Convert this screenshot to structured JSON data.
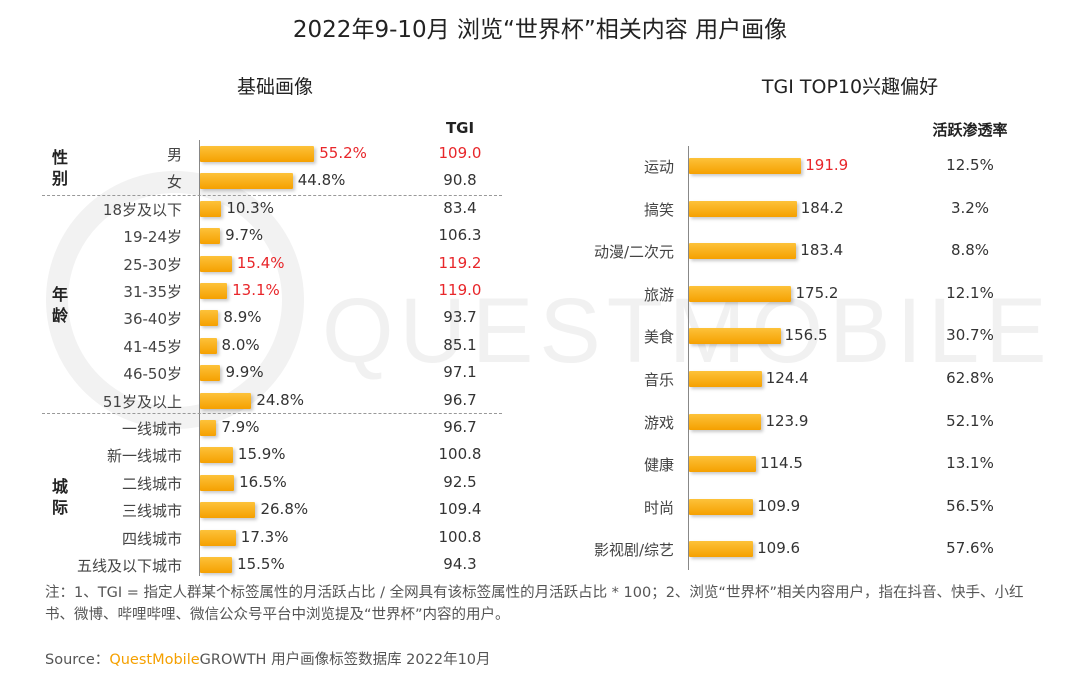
{
  "title": "2022年9-10月 浏览“世界杯”相关内容 用户画像",
  "watermark": "QUESTMOBILE",
  "colors": {
    "bar": "#f7b21c",
    "highlight": "#e8262a"
  },
  "chart_data": [
    {
      "type": "bar",
      "title": "基础画像",
      "value_unit": "%",
      "tgi_header": "TGI",
      "groups": [
        {
          "name": "性别",
          "lines": [
            "性",
            "别"
          ],
          "rows": [
            {
              "label": "男",
              "value": 55.2,
              "display": "55.2%",
              "tgi": "109.0",
              "highlight": true
            },
            {
              "label": "女",
              "value": 44.8,
              "display": "44.8%",
              "tgi": "90.8",
              "highlight": false
            }
          ]
        },
        {
          "name": "年龄",
          "lines": [
            "年",
            "龄"
          ],
          "rows": [
            {
              "label": "18岁及以下",
              "value": 10.3,
              "display": "10.3%",
              "tgi": "83.4",
              "highlight": false
            },
            {
              "label": "19-24岁",
              "value": 9.7,
              "display": "9.7%",
              "tgi": "106.3",
              "highlight": false
            },
            {
              "label": "25-30岁",
              "value": 15.4,
              "display": "15.4%",
              "tgi": "119.2",
              "highlight": true
            },
            {
              "label": "31-35岁",
              "value": 13.1,
              "display": "13.1%",
              "tgi": "119.0",
              "highlight": true
            },
            {
              "label": "36-40岁",
              "value": 8.9,
              "display": "8.9%",
              "tgi": "93.7",
              "highlight": false
            },
            {
              "label": "41-45岁",
              "value": 8.0,
              "display": "8.0%",
              "tgi": "85.1",
              "highlight": false
            },
            {
              "label": "46-50岁",
              "value": 9.9,
              "display": "9.9%",
              "tgi": "97.1",
              "highlight": false
            },
            {
              "label": "51岁及以上",
              "value": 24.8,
              "display": "24.8%",
              "tgi": "96.7",
              "highlight": false
            }
          ]
        },
        {
          "name": "城际",
          "lines": [
            "城",
            "际"
          ],
          "rows": [
            {
              "label": "一线城市",
              "value": 7.9,
              "display": "7.9%",
              "tgi": "96.7",
              "highlight": false
            },
            {
              "label": "新一线城市",
              "value": 15.9,
              "display": "15.9%",
              "tgi": "100.8",
              "highlight": false
            },
            {
              "label": "二线城市",
              "value": 16.5,
              "display": "16.5%",
              "tgi": "92.5",
              "highlight": false
            },
            {
              "label": "三线城市",
              "value": 26.8,
              "display": "26.8%",
              "tgi": "109.4",
              "highlight": false
            },
            {
              "label": "四线城市",
              "value": 17.3,
              "display": "17.3%",
              "tgi": "100.8",
              "highlight": false
            },
            {
              "label": "五线及以下城市",
              "value": 15.5,
              "display": "15.5%",
              "tgi": "94.3",
              "highlight": false
            }
          ]
        }
      ]
    },
    {
      "type": "bar",
      "title": "TGI TOP10兴趣偏好",
      "penetration_header": "活跃渗透率",
      "rows": [
        {
          "label": "运动",
          "tgi": 191.9,
          "display": "191.9",
          "penetration": "12.5%",
          "highlight": true
        },
        {
          "label": "搞笑",
          "tgi": 184.2,
          "display": "184.2",
          "penetration": "3.2%",
          "highlight": false
        },
        {
          "label": "动漫/二次元",
          "tgi": 183.4,
          "display": "183.4",
          "penetration": "8.8%",
          "highlight": false
        },
        {
          "label": "旅游",
          "tgi": 175.2,
          "display": "175.2",
          "penetration": "12.1%",
          "highlight": false
        },
        {
          "label": "美食",
          "tgi": 156.5,
          "display": "156.5",
          "penetration": "30.7%",
          "highlight": false
        },
        {
          "label": "音乐",
          "tgi": 124.4,
          "display": "124.4",
          "penetration": "62.8%",
          "highlight": false
        },
        {
          "label": "游戏",
          "tgi": 123.9,
          "display": "123.9",
          "penetration": "52.1%",
          "highlight": false
        },
        {
          "label": "健康",
          "tgi": 114.5,
          "display": "114.5",
          "penetration": "13.1%",
          "highlight": false
        },
        {
          "label": "时尚",
          "tgi": 109.9,
          "display": "109.9",
          "penetration": "56.5%",
          "highlight": false
        },
        {
          "label": "影视剧/综艺",
          "tgi": 109.6,
          "display": "109.6",
          "penetration": "57.6%",
          "highlight": false
        }
      ]
    }
  ],
  "note": "注：1、TGI = 指定人群某个标签属性的月活跃占比 / 全网具有该标签属性的月活跃占比 * 100；2、浏览“世界杯”相关内容用户，指在抖音、快手、小红书、微博、哔哩哔哩、微信公众号平台中浏览提及“世界杯”内容的用户。",
  "source": {
    "prefix": "Source：",
    "brand": "QuestMobile",
    "rest": "GROWTH 用户画像标签数据库 2022年10月"
  }
}
